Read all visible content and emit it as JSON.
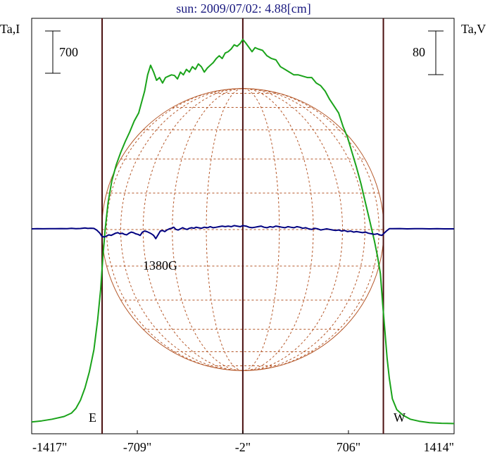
{
  "chart_data": {
    "type": "line",
    "title": "sun: 2009/07/02: 4.88[cm]",
    "ylabel_left": "Ta,I",
    "ylabel_right": "Ta,V",
    "x_ticks": [
      {
        "value": -1417,
        "label": "-1417\""
      },
      {
        "value": -709,
        "label": "-709\""
      },
      {
        "value": -2,
        "label": "-2\""
      },
      {
        "value": 706,
        "label": "706\""
      },
      {
        "value": 1414,
        "label": "1414\""
      }
    ],
    "xlim": [
      -1417,
      1414
    ],
    "scale_bar_left": "700",
    "scale_bar_right": "80",
    "limb_lines_x": [
      -945,
      -2,
      940
    ],
    "limb_labels": {
      "east": "E",
      "west": "W"
    },
    "annotation": {
      "text": "1380G",
      "x": -690
    },
    "disk": {
      "center_x": -2,
      "radius_arcsec": 945,
      "grid": true
    },
    "colors": {
      "intensity": "#1aa31a",
      "polarization": "#000080",
      "disk": "#b5582a",
      "limb": "#4a0f0f",
      "title": "#1a1a80"
    },
    "series": [
      {
        "key": "I",
        "color": "#1aa31a",
        "x": [
          -1417,
          -1350,
          -1280,
          -1200,
          -1150,
          -1120,
          -1090,
          -1060,
          -1030,
          -1000,
          -975,
          -955,
          -940,
          -925,
          -905,
          -880,
          -850,
          -820,
          -790,
          -760,
          -730,
          -700,
          -680,
          -660,
          -640,
          -620,
          -600,
          -580,
          -560,
          -540,
          -520,
          -500,
          -480,
          -460,
          -440,
          -420,
          -400,
          -380,
          -360,
          -340,
          -320,
          -300,
          -280,
          -260,
          -240,
          -220,
          -200,
          -180,
          -160,
          -140,
          -120,
          -100,
          -80,
          -60,
          -40,
          -20,
          -2,
          20,
          40,
          60,
          80,
          100,
          130,
          160,
          190,
          220,
          250,
          280,
          310,
          340,
          370,
          400,
          430,
          460,
          490,
          520,
          550,
          580,
          610,
          640,
          670,
          700,
          730,
          760,
          790,
          820,
          850,
          880,
          900,
          920,
          935,
          950,
          965,
          980,
          1000,
          1030,
          1070,
          1120,
          1180,
          1250,
          1330,
          1414
        ],
        "y": [
          30,
          38,
          50,
          70,
          95,
          130,
          190,
          280,
          400,
          560,
          780,
          1000,
          1240,
          1440,
          1640,
          1800,
          1920,
          2010,
          2090,
          2160,
          2240,
          2300,
          2380,
          2460,
          2580,
          2650,
          2600,
          2540,
          2560,
          2520,
          2560,
          2570,
          2580,
          2575,
          2550,
          2600,
          2580,
          2620,
          2600,
          2640,
          2620,
          2660,
          2640,
          2600,
          2630,
          2650,
          2670,
          2700,
          2720,
          2700,
          2740,
          2750,
          2770,
          2800,
          2790,
          2810,
          2840,
          2810,
          2780,
          2750,
          2780,
          2770,
          2760,
          2720,
          2700,
          2690,
          2640,
          2620,
          2600,
          2580,
          2580,
          2570,
          2560,
          2560,
          2520,
          2500,
          2460,
          2400,
          2350,
          2300,
          2200,
          2120,
          2010,
          1900,
          1780,
          1640,
          1500,
          1360,
          1250,
          1120,
          900,
          700,
          500,
          350,
          200,
          120,
          80,
          50,
          35,
          25,
          20,
          18
        ]
      },
      {
        "key": "V",
        "color": "#000080",
        "x": [
          -1417,
          -1380,
          -1340,
          -1300,
          -1260,
          -1220,
          -1180,
          -1150,
          -1120,
          -1090,
          -1060,
          -1040,
          -1020,
          -1000,
          -980,
          -960,
          -945,
          -930,
          -915,
          -900,
          -885,
          -870,
          -855,
          -840,
          -825,
          -810,
          -795,
          -780,
          -765,
          -750,
          -735,
          -720,
          -705,
          -690,
          -675,
          -660,
          -645,
          -630,
          -615,
          -600,
          -585,
          -570,
          -555,
          -540,
          -525,
          -510,
          -495,
          -480,
          -465,
          -450,
          -435,
          -420,
          -405,
          -390,
          -375,
          -360,
          -345,
          -330,
          -315,
          -300,
          -280,
          -260,
          -240,
          -220,
          -200,
          -180,
          -160,
          -140,
          -120,
          -100,
          -80,
          -60,
          -40,
          -20,
          -2,
          20,
          40,
          60,
          80,
          100,
          120,
          140,
          160,
          180,
          200,
          220,
          240,
          260,
          280,
          300,
          320,
          340,
          360,
          380,
          400,
          420,
          440,
          460,
          480,
          500,
          520,
          540,
          560,
          580,
          600,
          620,
          640,
          660,
          680,
          700,
          720,
          740,
          760,
          780,
          800,
          820,
          840,
          860,
          880,
          900,
          915,
          930,
          945,
          960,
          980,
          1000,
          1050,
          1100,
          1150,
          1200,
          1250,
          1300,
          1350,
          1414
        ],
        "y": [
          0,
          0.3,
          0.1,
          0.4,
          0.2,
          0.5,
          0.3,
          1.0,
          0.2,
          0.6,
          1.5,
          0.8,
          1.2,
          0.8,
          -2.5,
          -8,
          -14,
          -15,
          -13,
          -11,
          -12,
          -10,
          -8,
          -7,
          -9,
          -8,
          -10,
          -11,
          -8,
          -6,
          -7,
          -9,
          -10,
          -12,
          -6,
          -4,
          -5,
          -7,
          -9,
          -12,
          -18,
          -11,
          -4,
          -3,
          -5,
          -2,
          0,
          1,
          3,
          -1,
          -2,
          0,
          2,
          0,
          -1,
          1,
          2,
          1,
          3,
          2,
          1,
          3,
          2,
          4,
          2,
          3,
          4,
          5,
          4,
          5,
          4,
          6,
          5,
          4,
          6,
          5,
          3,
          2,
          3,
          4,
          5,
          3,
          2,
          4,
          3,
          5,
          4,
          3,
          2,
          4,
          3,
          2,
          4,
          3,
          1,
          2,
          0,
          -1,
          1,
          0,
          -2,
          -1,
          0,
          -1,
          -2,
          -3,
          -2,
          -4,
          -3,
          -5,
          -4,
          -6,
          -5,
          -6,
          -7,
          -6,
          -8,
          -9,
          -10,
          -9,
          -11,
          -12,
          -8,
          -4,
          0.2,
          0.3,
          0.5,
          0,
          0.3,
          0.4,
          0,
          0.2,
          0,
          0
        ]
      }
    ]
  }
}
